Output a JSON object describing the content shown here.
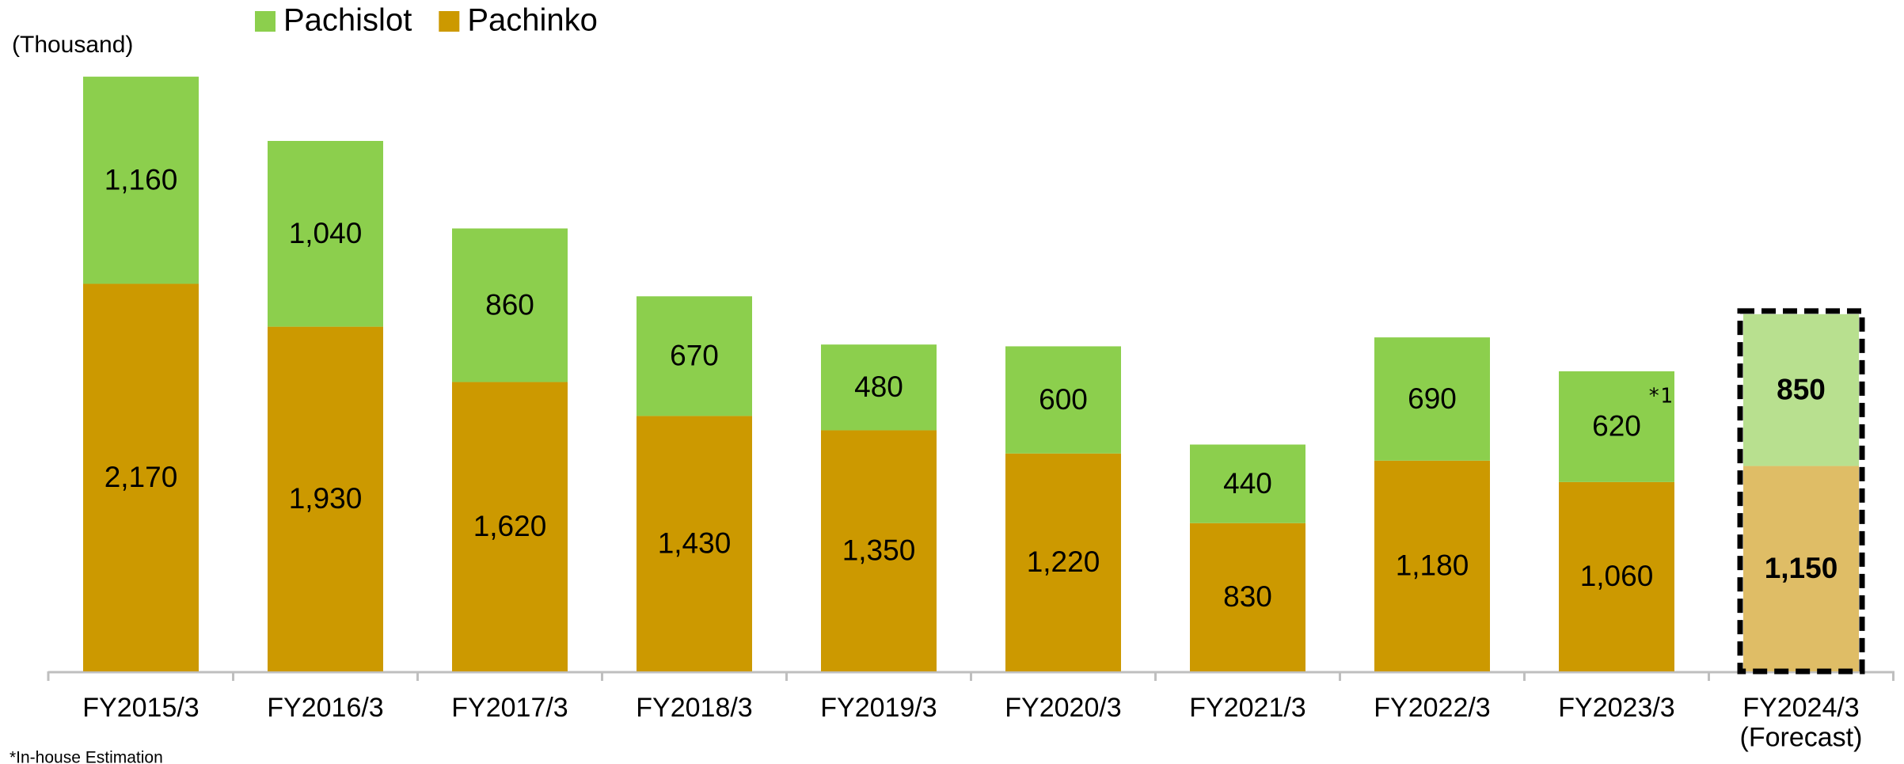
{
  "chart_data": {
    "type": "stacked_bar",
    "unit_label": "(Thousand)",
    "categories": [
      "FY2015/3",
      "FY2016/3",
      "FY2017/3",
      "FY2018/3",
      "FY2019/3",
      "FY2020/3",
      "FY2021/3",
      "FY2022/3",
      "FY2023/3",
      "FY2024/3\n(Forecast)"
    ],
    "series": [
      {
        "name": "Pachinko",
        "color": "#cc9900",
        "highlight_color": "#dfbd66",
        "values": [
          2170,
          1930,
          1620,
          1430,
          1350,
          1220,
          830,
          1180,
          1060,
          1150
        ],
        "value_labels": [
          "2,170",
          "1,930",
          "1,620",
          "1,430",
          "1,350",
          "1,220",
          "830",
          "1,180",
          "1,060",
          "1,150"
        ]
      },
      {
        "name": "Pachislot",
        "color": "#8ccf4d",
        "highlight_color": "#b8e08f",
        "values": [
          1160,
          1040,
          860,
          670,
          480,
          600,
          440,
          690,
          620,
          850
        ],
        "value_labels": [
          "1,160",
          "1,040",
          "860",
          "670",
          "480",
          "600",
          "440",
          "690",
          "620",
          "850"
        ]
      }
    ],
    "highlight_index": 9,
    "ylim": [
      0,
      3400
    ],
    "legend": "top",
    "annotations": [
      {
        "text": "*1",
        "category_index": 8
      }
    ],
    "footnote": "*In-house Estimation"
  }
}
